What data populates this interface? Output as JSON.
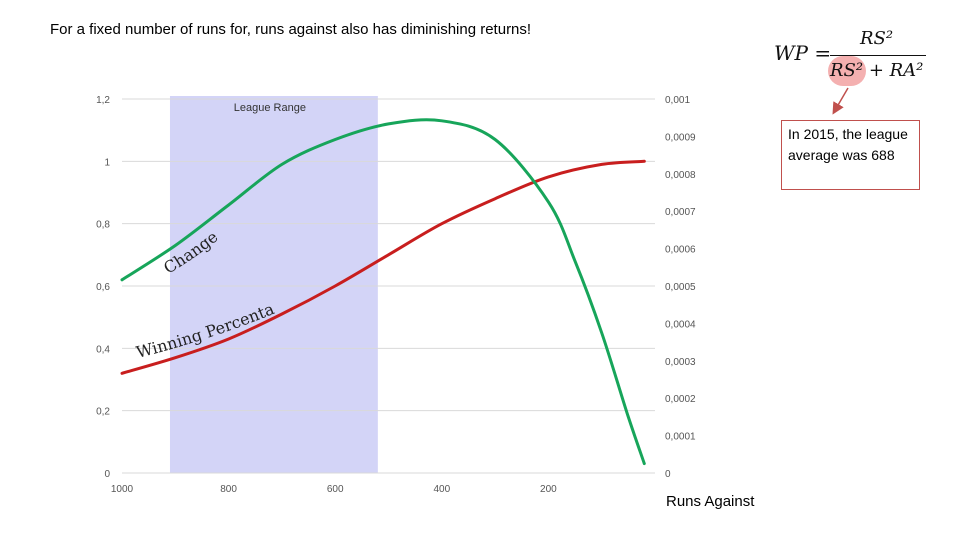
{
  "title": "For a fixed number of runs for, runs against also has diminishing returns!",
  "formula": {
    "lhs": "WP =",
    "numerator": "RS²",
    "denominator": "RS² + RA²"
  },
  "callout": {
    "text": "In 2015, the league average was 688"
  },
  "colors": {
    "band": "#d3d4f7",
    "winning_percentage": "#c81e1e",
    "change": "#17a55a",
    "callout_border": "#c0504d",
    "arrow": "#c0504d"
  },
  "chart_data": {
    "type": "line",
    "xlabel": "Runs Against",
    "x_reversed": true,
    "xlim": [
      1000,
      0
    ],
    "x_ticks": [
      "1000",
      "800",
      "600",
      "400",
      "200"
    ],
    "y_left": {
      "lim": [
        0,
        1.2
      ],
      "ticks": [
        "0",
        "0,2",
        "0,4",
        "0,6",
        "0,8",
        "1",
        "1,2"
      ]
    },
    "y_right": {
      "lim": [
        0,
        0.001
      ],
      "ticks": [
        "0",
        "0,0001",
        "0,0002",
        "0,0003",
        "0,0004",
        "0,0005",
        "0,0006",
        "0,0007",
        "0,0008",
        "0,0009",
        "0,001"
      ]
    },
    "band": {
      "label": "League Range",
      "from": 910,
      "to": 520
    },
    "series": [
      {
        "name": "Winning Percentage",
        "axis": "left",
        "x": [
          1000,
          900,
          800,
          700,
          600,
          500,
          400,
          300,
          200,
          100,
          20
        ],
        "y": [
          0.32,
          0.37,
          0.43,
          0.51,
          0.6,
          0.7,
          0.8,
          0.88,
          0.95,
          0.99,
          1.0
        ]
      },
      {
        "name": "Change",
        "axis": "left",
        "x": [
          1000,
          900,
          800,
          700,
          600,
          500,
          400,
          300,
          200,
          150,
          100,
          50,
          20
        ],
        "y": [
          0.62,
          0.73,
          0.86,
          0.99,
          1.07,
          1.12,
          1.13,
          1.07,
          0.87,
          0.68,
          0.45,
          0.18,
          0.03
        ]
      }
    ],
    "curve_labels": {
      "percentage": "Winning Percentage",
      "change": "Change"
    }
  }
}
